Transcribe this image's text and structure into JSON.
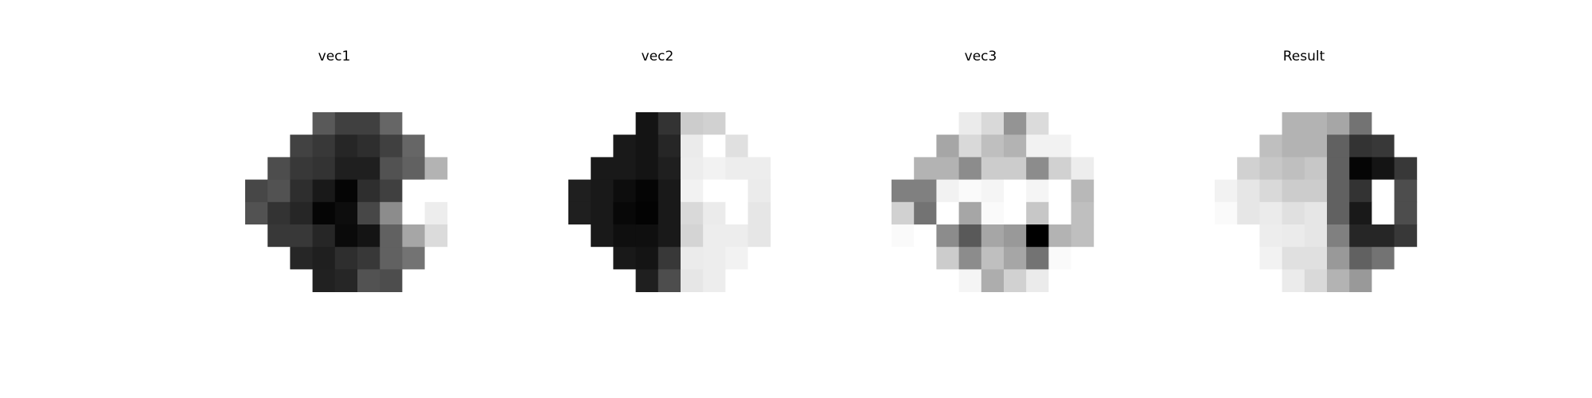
{
  "chart_data": [
    {
      "type": "heatmap",
      "title": "vec1",
      "colormap": "gray_r",
      "grid": false,
      "axes": "off",
      "rows": 8,
      "cols": 9,
      "values": [
        [
          0.0,
          0.0,
          0.0,
          0.65,
          0.75,
          0.75,
          0.6,
          0.0,
          0.0
        ],
        [
          0.0,
          0.0,
          0.74,
          0.78,
          0.85,
          0.82,
          0.75,
          0.6,
          0.0
        ],
        [
          0.0,
          0.7,
          0.78,
          0.8,
          0.88,
          0.88,
          0.68,
          0.62,
          0.3
        ],
        [
          0.72,
          0.68,
          0.82,
          0.9,
          0.98,
          0.82,
          0.75,
          0.0,
          0.0
        ],
        [
          0.68,
          0.8,
          0.85,
          0.98,
          0.95,
          0.72,
          0.45,
          0.0,
          0.07
        ],
        [
          0.0,
          0.78,
          0.78,
          0.85,
          0.96,
          0.92,
          0.62,
          0.35,
          0.14
        ],
        [
          0.0,
          0.0,
          0.85,
          0.88,
          0.82,
          0.78,
          0.62,
          0.55,
          0.0
        ],
        [
          0.0,
          0.0,
          0.0,
          0.87,
          0.85,
          0.68,
          0.7,
          0.0,
          0.0
        ]
      ]
    },
    {
      "type": "heatmap",
      "title": "vec2",
      "colormap": "gray_r",
      "grid": false,
      "axes": "off",
      "rows": 8,
      "cols": 9,
      "values": [
        [
          0.0,
          0.0,
          0.0,
          0.92,
          0.8,
          0.2,
          0.18,
          0.0,
          0.0
        ],
        [
          0.0,
          0.0,
          0.9,
          0.92,
          0.85,
          0.08,
          0.0,
          0.12,
          0.0
        ],
        [
          0.0,
          0.9,
          0.9,
          0.92,
          0.88,
          0.07,
          0.05,
          0.07,
          0.07
        ],
        [
          0.88,
          0.9,
          0.95,
          0.98,
          0.9,
          0.05,
          0.0,
          0.0,
          0.08
        ],
        [
          0.88,
          0.9,
          0.97,
          0.99,
          0.9,
          0.15,
          0.08,
          0.0,
          0.1
        ],
        [
          0.0,
          0.9,
          0.94,
          0.94,
          0.9,
          0.17,
          0.07,
          0.07,
          0.1
        ],
        [
          0.0,
          0.0,
          0.9,
          0.92,
          0.78,
          0.08,
          0.07,
          0.05,
          0.0
        ],
        [
          0.0,
          0.0,
          0.0,
          0.88,
          0.7,
          0.1,
          0.07,
          0.0,
          0.0
        ]
      ]
    },
    {
      "type": "heatmap",
      "title": "vec3",
      "colormap": "gray_r",
      "grid": false,
      "axes": "off",
      "rows": 8,
      "cols": 9,
      "values": [
        [
          0.0,
          0.0,
          0.0,
          0.08,
          0.15,
          0.42,
          0.14,
          0.0,
          0.0
        ],
        [
          0.0,
          0.0,
          0.35,
          0.15,
          0.25,
          0.3,
          0.05,
          0.05,
          0.0
        ],
        [
          0.0,
          0.3,
          0.3,
          0.45,
          0.2,
          0.2,
          0.45,
          0.18,
          0.07
        ],
        [
          0.5,
          0.5,
          0.05,
          0.02,
          0.04,
          0.0,
          0.04,
          0.0,
          0.28
        ],
        [
          0.18,
          0.55,
          0.0,
          0.35,
          0.02,
          0.0,
          0.22,
          0.0,
          0.25
        ],
        [
          0.02,
          0.0,
          0.45,
          0.65,
          0.35,
          0.4,
          1.0,
          0.3,
          0.25
        ],
        [
          0.0,
          0.0,
          0.2,
          0.45,
          0.25,
          0.35,
          0.55,
          0.02,
          0.0
        ],
        [
          0.0,
          0.0,
          0.0,
          0.04,
          0.32,
          0.18,
          0.08,
          0.0,
          0.0
        ]
      ]
    },
    {
      "type": "heatmap",
      "title": "Result",
      "colormap": "gray_r",
      "grid": false,
      "axes": "off",
      "rows": 8,
      "cols": 9,
      "values": [
        [
          0.0,
          0.0,
          0.0,
          0.3,
          0.3,
          0.35,
          0.55,
          0.0,
          0.0
        ],
        [
          0.0,
          0.0,
          0.25,
          0.3,
          0.3,
          0.62,
          0.8,
          0.78,
          0.0
        ],
        [
          0.0,
          0.18,
          0.22,
          0.25,
          0.22,
          0.62,
          0.98,
          0.92,
          0.78
        ],
        [
          0.05,
          0.1,
          0.15,
          0.2,
          0.2,
          0.62,
          0.8,
          0.0,
          0.7
        ],
        [
          0.02,
          0.1,
          0.08,
          0.12,
          0.1,
          0.62,
          0.9,
          0.0,
          0.7
        ],
        [
          0.0,
          0.0,
          0.07,
          0.08,
          0.1,
          0.5,
          0.85,
          0.85,
          0.78
        ],
        [
          0.0,
          0.0,
          0.05,
          0.12,
          0.12,
          0.4,
          0.62,
          0.55,
          0.0
        ],
        [
          0.0,
          0.0,
          0.0,
          0.08,
          0.15,
          0.3,
          0.4,
          0.0,
          0.0
        ]
      ]
    }
  ]
}
